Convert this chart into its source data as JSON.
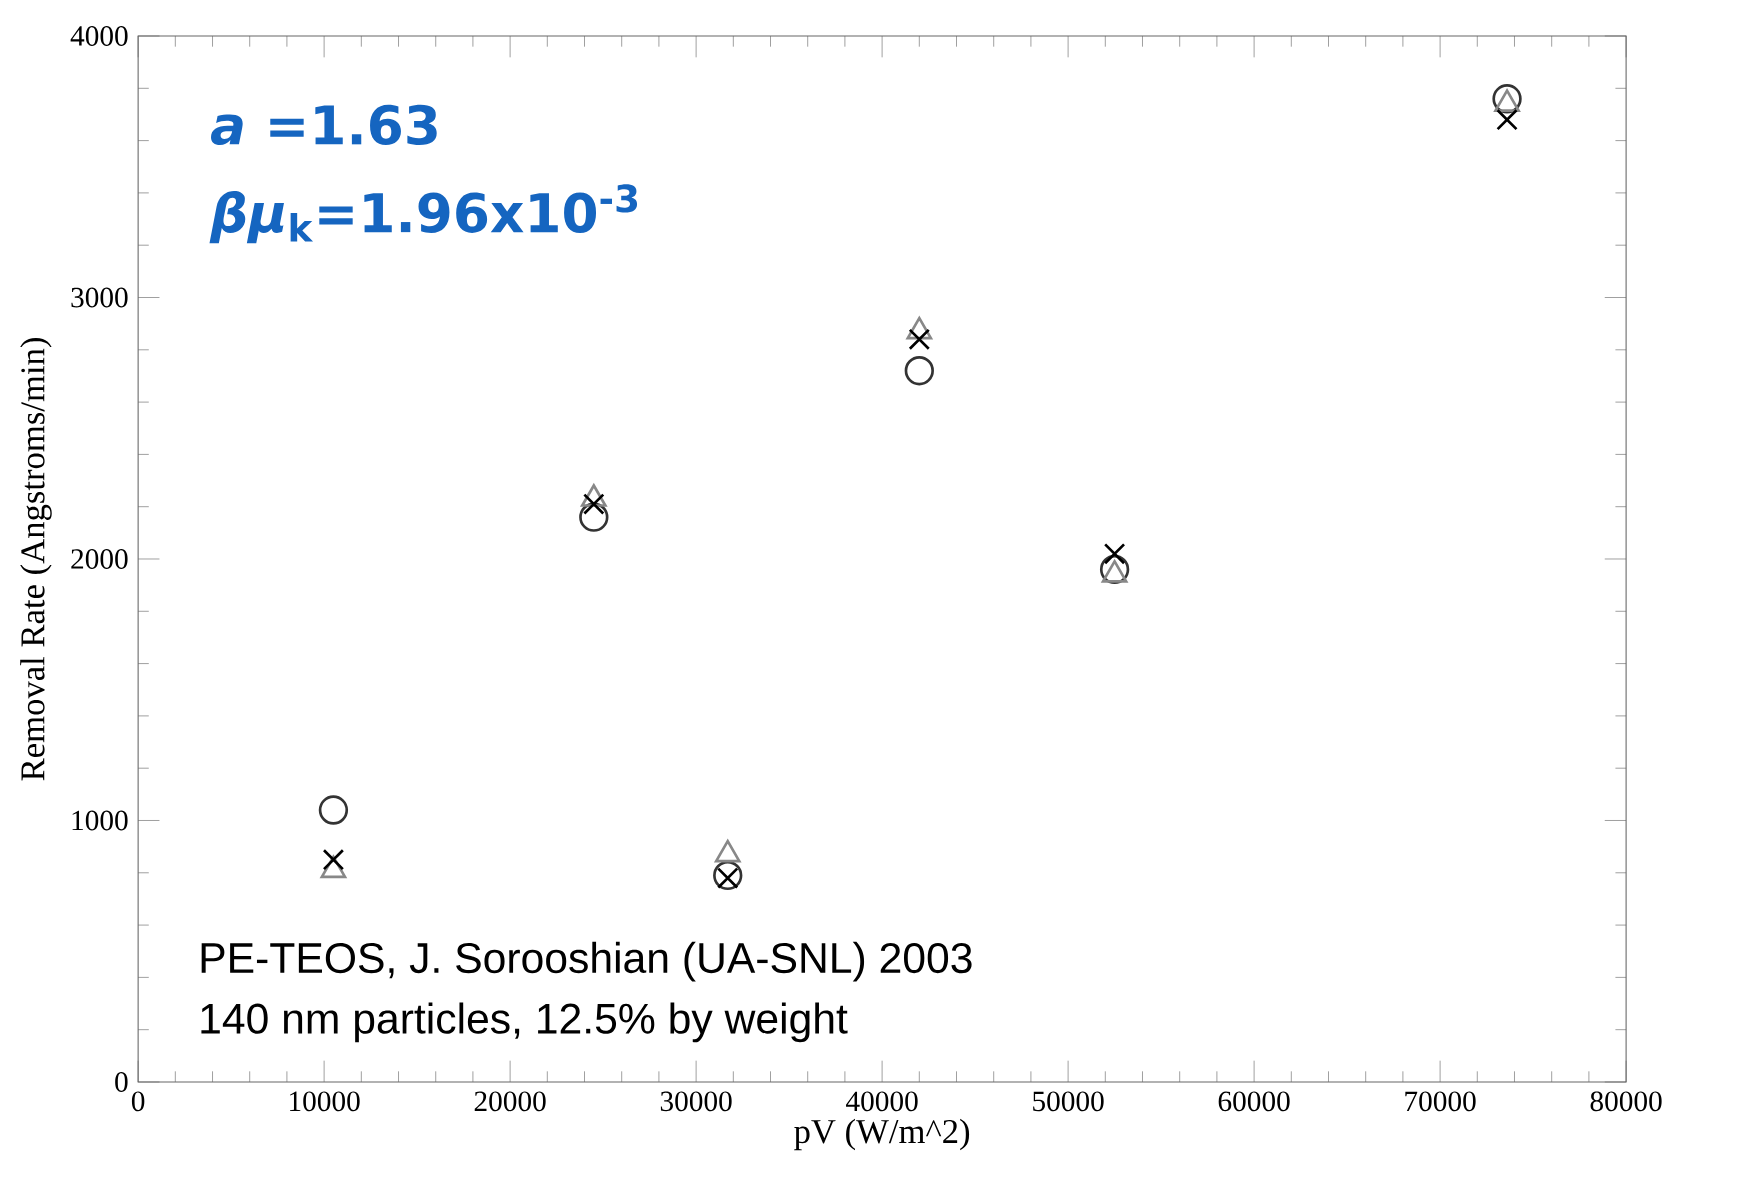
{
  "chart_data": {
    "type": "scatter",
    "xlabel": "pV (W/m^2)",
    "ylabel": "Removal Rate (Angstroms/min)",
    "x": [
      10500,
      24500,
      31700,
      42000,
      52500,
      73600
    ],
    "series": [
      {
        "color": "#333333",
        "marker": "circle",
        "values": [
          1040,
          2160,
          790,
          2720,
          1960,
          3760
        ]
      },
      {
        "color": "#888888",
        "marker": "triangle",
        "values": [
          810,
          2230,
          870,
          2870,
          1940,
          3740
        ]
      },
      {
        "color": "#000000",
        "marker": "cross",
        "values": [
          850,
          2210,
          780,
          2840,
          2020,
          3680
        ]
      }
    ],
    "xlim": [
      0,
      80000
    ],
    "ylim": [
      0,
      4000
    ],
    "xticks": [
      0,
      10000,
      20000,
      30000,
      40000,
      50000,
      60000,
      70000,
      80000
    ],
    "yticks": [
      0,
      1000,
      2000,
      3000,
      4000
    ],
    "annotations": [
      "*a*    =1.63",
      "*βμ*$_{k}$=1.96x10$^{-3}$",
      "PE-TEOS, J. Sorooshian (UA-SNL) 2003",
      "140 nm particles, 12.5% by weight"
    ]
  }
}
